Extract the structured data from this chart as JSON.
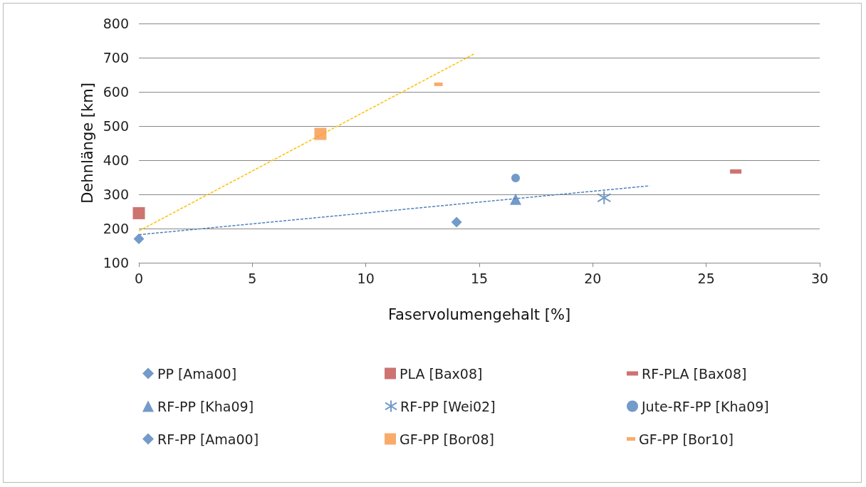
{
  "chart_data": {
    "type": "scatter",
    "xlabel": "Faservolumengehalt [%]",
    "ylabel": "Dehnlänge [km]",
    "xlim": [
      0,
      30
    ],
    "xticks": [
      0,
      5,
      10,
      15,
      20,
      25,
      30
    ],
    "ylim": [
      100,
      800
    ],
    "yticks": [
      100,
      200,
      300,
      400,
      500,
      600,
      700,
      800
    ],
    "grid": "y",
    "legend": "bottom",
    "series": [
      {
        "name": "PP [Ama00]",
        "color": "#4f81bd",
        "marker": "diamond",
        "x": [
          0
        ],
        "values": [
          170
        ]
      },
      {
        "name": "PLA [Bax08]",
        "color": "#c0504d",
        "marker": "square",
        "x": [
          0
        ],
        "values": [
          245
        ]
      },
      {
        "name": "RF-PLA [Bax08]",
        "color": "#c0504d",
        "marker": "square",
        "x": [
          26.3
        ],
        "values": [
          367
        ]
      },
      {
        "name": "RF-PP [Kha09]",
        "color": "#4f81bd",
        "marker": "triangle",
        "x": [
          16.6
        ],
        "values": [
          286
        ]
      },
      {
        "name": "RF-PP [Wei02]",
        "color": "#4f81bd",
        "marker": "cross",
        "x": [
          20.5
        ],
        "values": [
          290
        ]
      },
      {
        "name": "Jute-RF-PP [Kha09]",
        "color": "#4f81bd",
        "marker": "circle",
        "x": [
          16.6
        ],
        "values": [
          348
        ]
      },
      {
        "name": "RF-PP [Ama00]",
        "color": "#4f81bd",
        "marker": "diamond",
        "x": [
          14
        ],
        "values": [
          219
        ]
      },
      {
        "name": "GF-PP [Bor08]",
        "color": "#f79646",
        "marker": "square",
        "x": [
          8
        ],
        "values": [
          477
        ]
      },
      {
        "name": "GF-PP [Bor10]",
        "color": "#f79646",
        "marker": "square",
        "x": [
          13.2
        ],
        "values": [
          622
        ]
      },
      {
        "type": "line",
        "color": "#4f81bd",
        "line_style": "dashed",
        "marker": "none",
        "x": [
          0,
          22.5
        ],
        "values": [
          182,
          325
        ]
      },
      {
        "type": "line",
        "color": "#ffc000",
        "line_style": "dashed",
        "marker": "none",
        "x": [
          0,
          14.8
        ],
        "values": [
          193,
          712
        ]
      }
    ]
  }
}
